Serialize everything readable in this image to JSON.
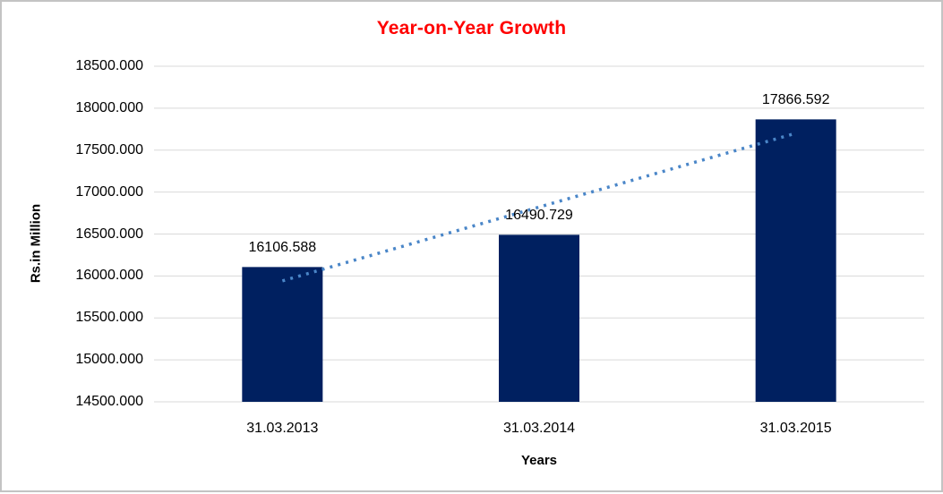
{
  "window": {
    "background_color": "#FFFFFF",
    "border_color": "#C3C3C3"
  },
  "chart_data": {
    "type": "bar",
    "title": "Year-on-Year Growth",
    "title_color": "#FF0000",
    "xlabel": "Years",
    "ylabel": "Rs.in Million",
    "categories": [
      "31.03.2013",
      "31.03.2014",
      "31.03.2015"
    ],
    "values": [
      16106.588,
      16490.729,
      17866.592
    ],
    "data_labels": [
      "16106.588",
      "16490.729",
      "17866.592"
    ],
    "ylim": [
      14500,
      18500
    ],
    "ytick_step": 500,
    "ytick_decimals": 3,
    "grid": true,
    "legend": false,
    "bar_color": "#002060",
    "gridline_color": "#D9D9D9",
    "text_color": "#000000",
    "trendline": {
      "type": "linear",
      "style": "dotted",
      "color": "#4A86C8"
    }
  }
}
